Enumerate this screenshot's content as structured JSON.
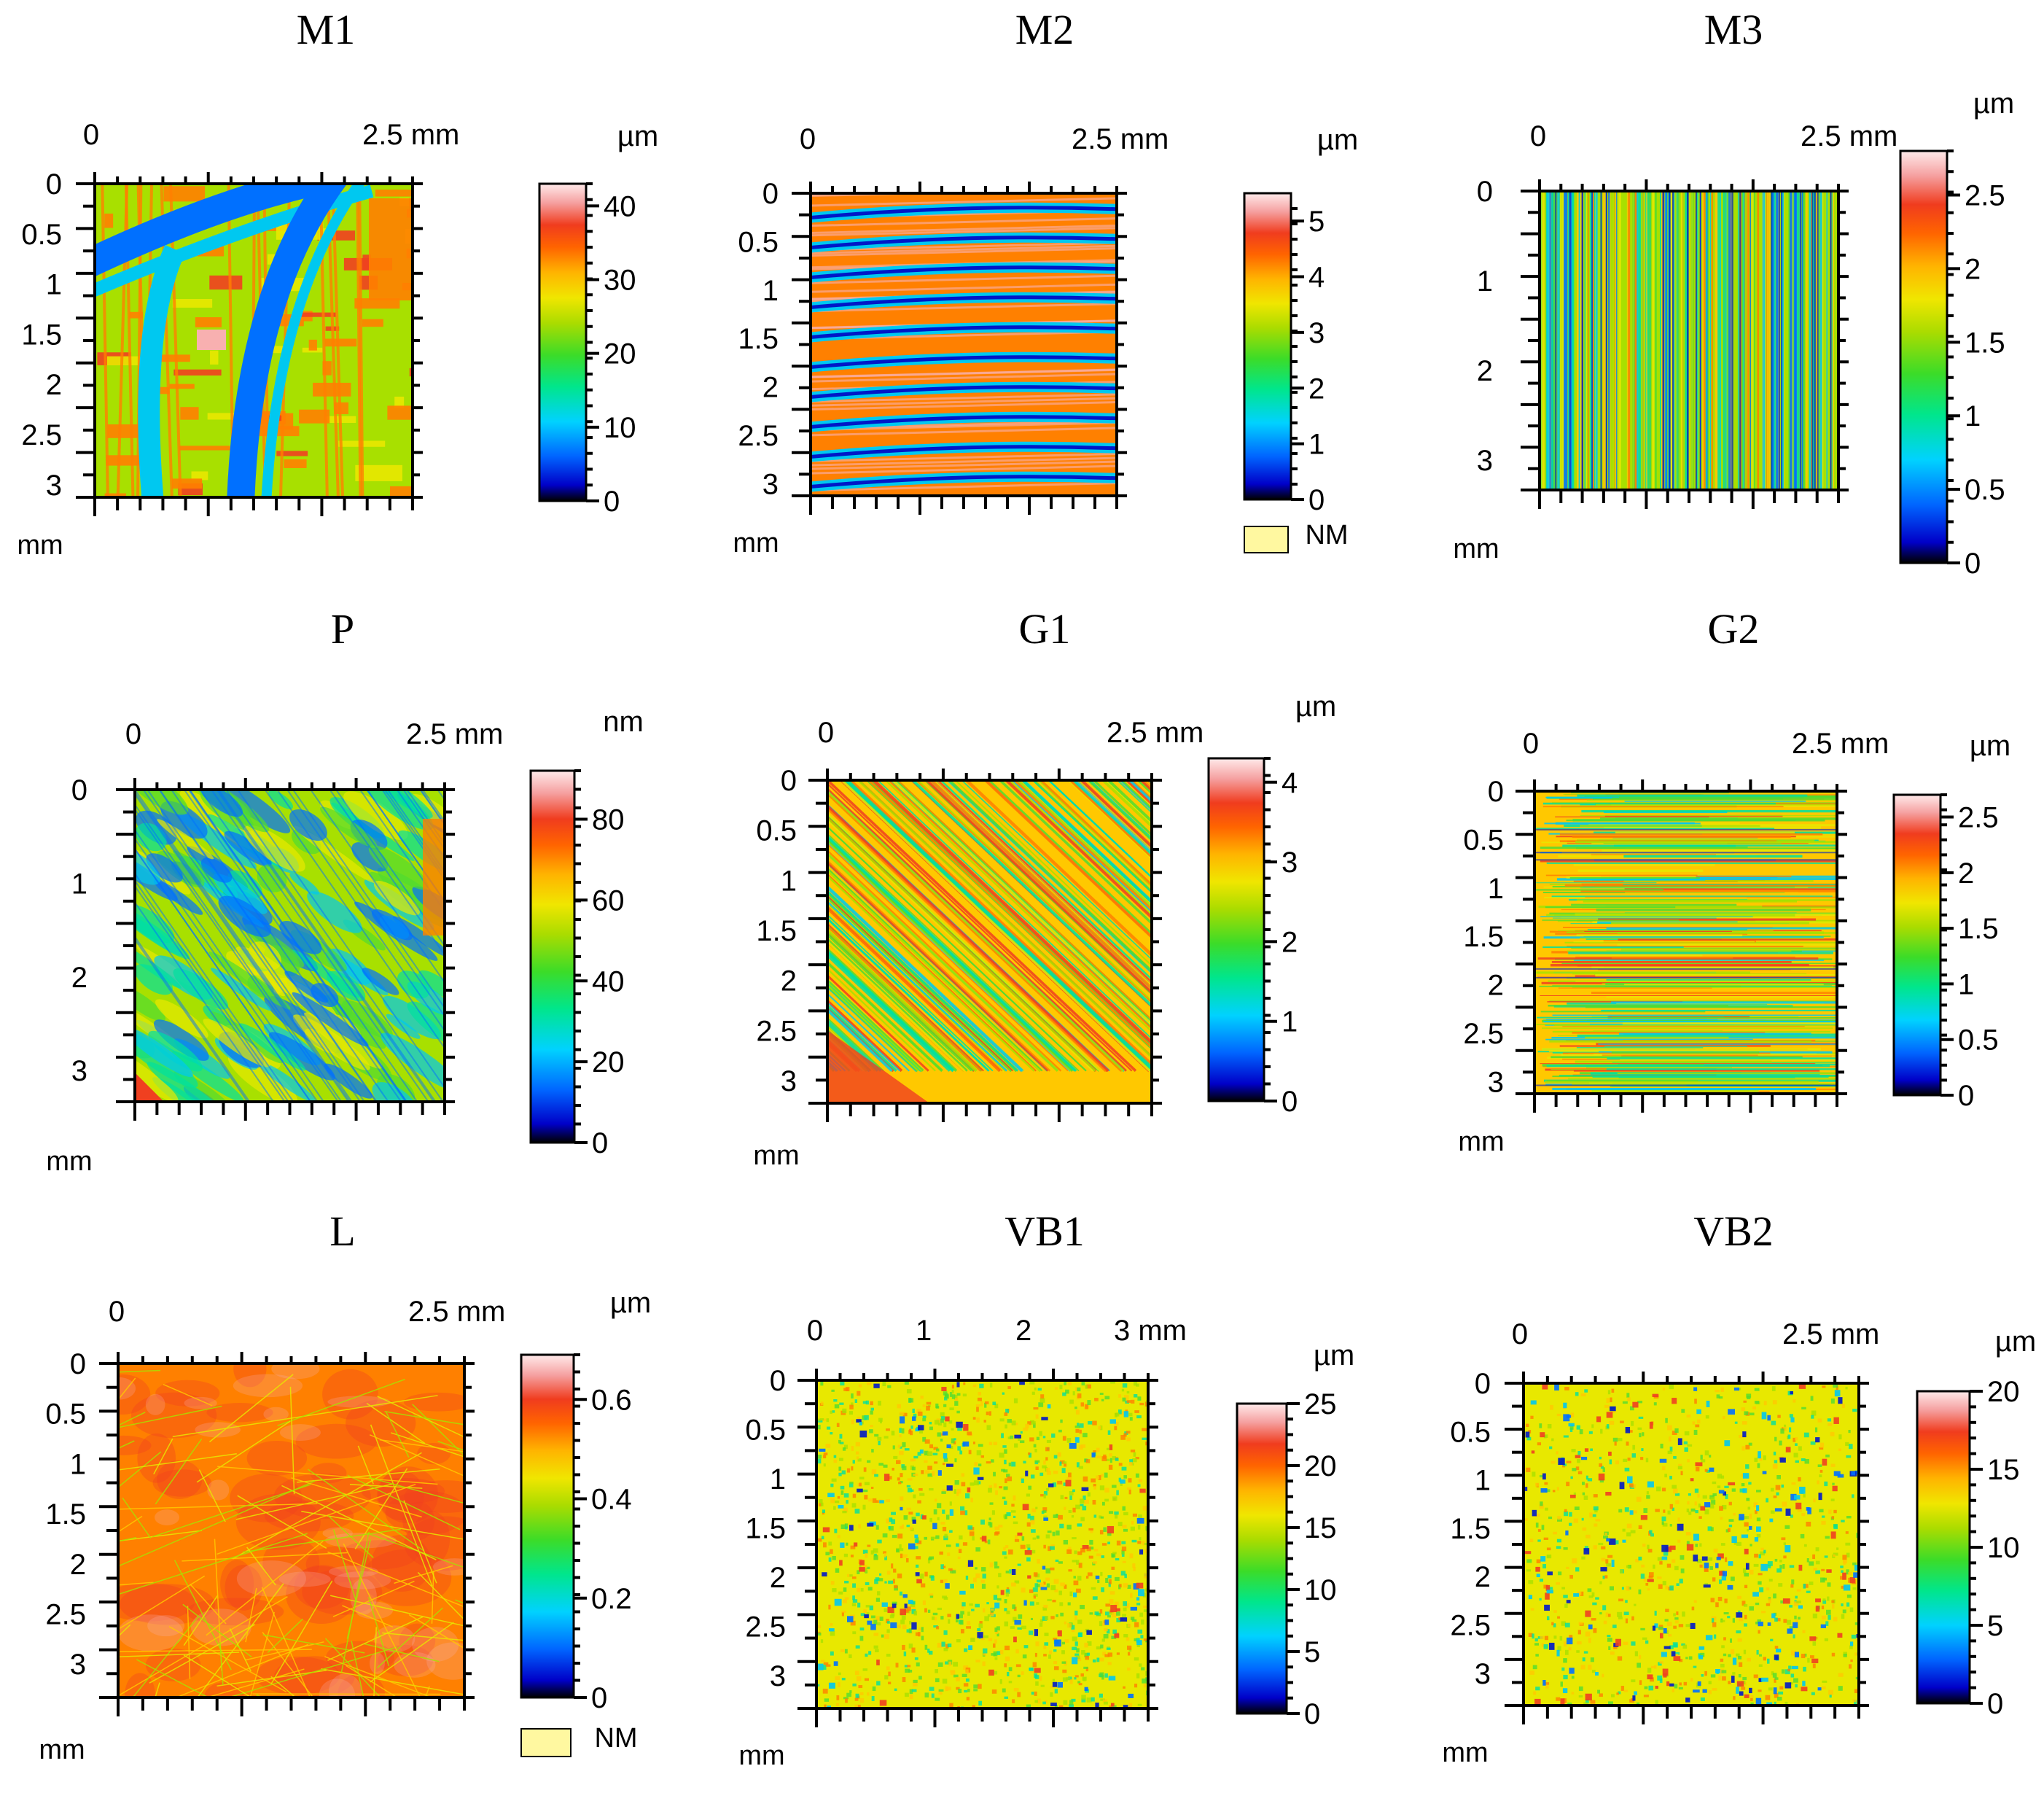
{
  "chart_data": [
    {
      "type": "heatmap",
      "title": "M1",
      "x_axis": {
        "ticks": [
          "0",
          "2.5 mm"
        ]
      },
      "y_axis": {
        "ticks": [
          "0",
          "0.5",
          "1",
          "1.5",
          "2",
          "2.5",
          "3"
        ],
        "unit": "mm"
      },
      "colorbar": {
        "unit": "µm",
        "ticks": [
          "0",
          "10",
          "20",
          "30",
          "40"
        ],
        "range": [
          0,
          43
        ]
      },
      "pattern": "curved-bands",
      "nm_legend": null
    },
    {
      "type": "heatmap",
      "title": "M2",
      "x_axis": {
        "ticks": [
          "0",
          "2.5 mm"
        ]
      },
      "y_axis": {
        "ticks": [
          "0",
          "0.5",
          "1",
          "1.5",
          "2",
          "2.5",
          "3"
        ],
        "unit": "mm"
      },
      "colorbar": {
        "unit": "µm",
        "ticks": [
          "0",
          "1",
          "2",
          "3",
          "4",
          "5"
        ],
        "range": [
          0,
          5.5
        ]
      },
      "pattern": "horizontal-stripes",
      "nm_legend": "NM"
    },
    {
      "type": "heatmap",
      "title": "M3",
      "x_axis": {
        "ticks": [
          "0",
          "2.5 mm"
        ]
      },
      "y_axis": {
        "ticks": [
          "0",
          "1",
          "2",
          "3"
        ],
        "unit": "mm"
      },
      "colorbar": {
        "unit": "µm",
        "ticks": [
          "0",
          "0.5",
          "1",
          "1.5",
          "2",
          "2.5"
        ],
        "range": [
          0,
          2.8
        ]
      },
      "pattern": "vertical-lines",
      "nm_legend": null
    },
    {
      "type": "heatmap",
      "title": "P",
      "x_axis": {
        "ticks": [
          "0",
          "2.5 mm"
        ]
      },
      "y_axis": {
        "ticks": [
          "0",
          "1",
          "2",
          "3"
        ],
        "unit": "mm"
      },
      "colorbar": {
        "unit": "nm",
        "ticks": [
          "0",
          "20",
          "40",
          "60",
          "80"
        ],
        "range": [
          0,
          92
        ]
      },
      "pattern": "diagonal-blotchy",
      "nm_legend": null
    },
    {
      "type": "heatmap",
      "title": "G1",
      "x_axis": {
        "ticks": [
          "0",
          "2.5 mm"
        ]
      },
      "y_axis": {
        "ticks": [
          "0",
          "0.5",
          "1",
          "1.5",
          "2",
          "2.5",
          "3"
        ],
        "unit": "mm"
      },
      "colorbar": {
        "unit": "µm",
        "ticks": [
          "0",
          "1",
          "2",
          "3",
          "4"
        ],
        "range": [
          0,
          4.3
        ]
      },
      "pattern": "diagonal-lines",
      "nm_legend": null
    },
    {
      "type": "heatmap",
      "title": "G2",
      "x_axis": {
        "ticks": [
          "0",
          "2.5 mm"
        ]
      },
      "y_axis": {
        "ticks": [
          "0",
          "0.5",
          "1",
          "1.5",
          "2",
          "2.5",
          "3"
        ],
        "unit": "mm"
      },
      "colorbar": {
        "unit": "µm",
        "ticks": [
          "0",
          "0.5",
          "1",
          "1.5",
          "2",
          "2.5"
        ],
        "range": [
          0,
          2.7
        ]
      },
      "pattern": "horizontal-lines",
      "nm_legend": null
    },
    {
      "type": "heatmap",
      "title": "L",
      "x_axis": {
        "ticks": [
          "0",
          "2.5 mm"
        ]
      },
      "y_axis": {
        "ticks": [
          "0",
          "0.5",
          "1",
          "1.5",
          "2",
          "2.5",
          "3"
        ],
        "unit": "mm"
      },
      "colorbar": {
        "unit": "µm",
        "ticks": [
          "0",
          "0.2",
          "0.4",
          "0.6"
        ],
        "range": [
          0,
          0.69
        ]
      },
      "pattern": "orange-scratches",
      "nm_legend": "NM"
    },
    {
      "type": "heatmap",
      "title": "VB1",
      "x_axis": {
        "ticks": [
          "0",
          "1",
          "2",
          "3 mm"
        ]
      },
      "y_axis": {
        "ticks": [
          "0",
          "0.5",
          "1",
          "1.5",
          "2",
          "2.5",
          "3"
        ],
        "unit": "mm"
      },
      "colorbar": {
        "unit": "µm",
        "ticks": [
          "0",
          "5",
          "10",
          "15",
          "20",
          "25"
        ],
        "range": [
          0,
          25
        ]
      },
      "pattern": "speckle",
      "nm_legend": null
    },
    {
      "type": "heatmap",
      "title": "VB2",
      "x_axis": {
        "ticks": [
          "0",
          "2.5 mm"
        ]
      },
      "y_axis": {
        "ticks": [
          "0",
          "0.5",
          "1",
          "1.5",
          "2",
          "2.5",
          "3"
        ],
        "unit": "mm"
      },
      "colorbar": {
        "unit": "µm",
        "ticks": [
          "0",
          "5",
          "10",
          "15",
          "20"
        ],
        "range": [
          0,
          20
        ]
      },
      "pattern": "speckle-dots",
      "nm_legend": null
    }
  ],
  "colors": {
    "scale": [
      "#000000",
      "#0000c8",
      "#0064ff",
      "#00d2ff",
      "#00e68c",
      "#3cdc28",
      "#aadc00",
      "#f0e600",
      "#ffb400",
      "#ff6400",
      "#f03c1e",
      "#f5a0a0",
      "#ffe6e6"
    ],
    "nm_swatch": "#fff8a0"
  }
}
